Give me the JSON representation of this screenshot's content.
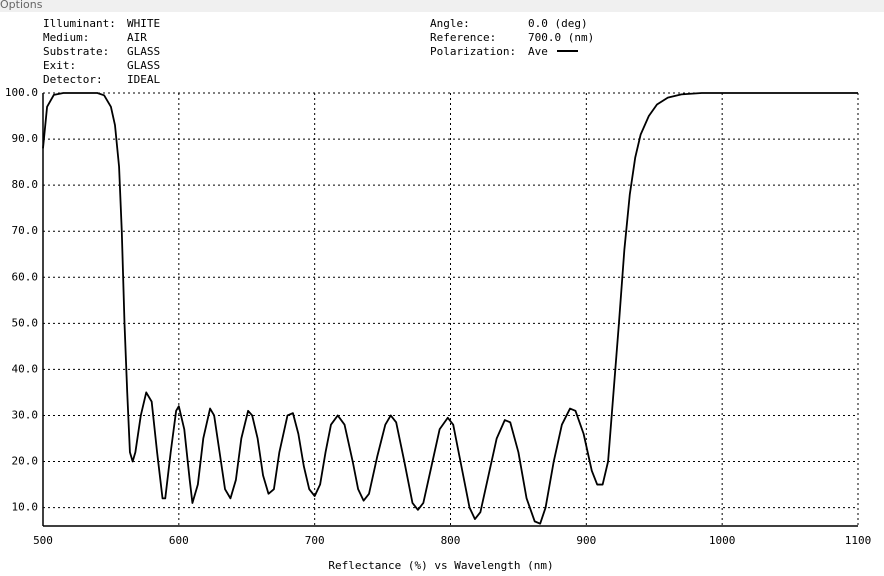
{
  "menu": [
    "Options"
  ],
  "chart_data": {
    "type": "line",
    "info_left": [
      {
        "label": "Illuminant:",
        "value": "WHITE"
      },
      {
        "label": "Medium:",
        "value": "AIR"
      },
      {
        "label": "Substrate:",
        "value": "GLASS"
      },
      {
        "label": "Exit:",
        "value": "GLASS"
      },
      {
        "label": "Detector:",
        "value": "IDEAL"
      }
    ],
    "info_right": [
      {
        "label": "Angle:",
        "value": "0.0 (deg)"
      },
      {
        "label": "Reference:",
        "value": "700.0 (nm)"
      }
    ],
    "legend_label": "Polarization:",
    "xlabel": "Reflectance (%)  vs  Wavelength (nm)",
    "xlim": [
      500,
      1100
    ],
    "ylim": [
      6,
      100
    ],
    "xticks": [
      500,
      600,
      700,
      800,
      900,
      1000,
      1100
    ],
    "yticks": [
      {
        "value": 100,
        "label": "100.0"
      },
      {
        "value": 90,
        "label": "90.0"
      },
      {
        "value": 80,
        "label": "80.0"
      },
      {
        "value": 70,
        "label": "70.0"
      },
      {
        "value": 60,
        "label": "60.0"
      },
      {
        "value": 50,
        "label": "50.0"
      },
      {
        "value": 40,
        "label": "40.0"
      },
      {
        "value": 30,
        "label": "30.0"
      },
      {
        "value": 20,
        "label": "20.0"
      },
      {
        "value": 10,
        "label": "10.0"
      }
    ],
    "grid": true,
    "x": [
      500,
      503,
      508,
      515,
      540,
      545,
      550,
      553,
      556,
      558,
      560,
      562,
      564,
      566,
      568,
      572,
      576,
      580,
      584,
      588,
      590,
      594,
      598,
      600,
      604,
      608,
      610,
      614,
      618,
      623,
      626,
      630,
      634,
      638,
      642,
      646,
      651,
      654,
      658,
      662,
      666,
      670,
      674,
      680,
      684,
      688,
      692,
      696,
      700,
      704,
      708,
      712,
      717,
      722,
      728,
      732,
      736,
      740,
      746,
      752,
      756,
      760,
      766,
      772,
      776,
      780,
      786,
      792,
      798,
      802,
      808,
      814,
      818,
      822,
      828,
      834,
      840,
      844,
      850,
      856,
      862,
      866,
      870,
      876,
      882,
      888,
      892,
      898,
      904,
      908,
      912,
      916,
      920,
      924,
      928,
      932,
      936,
      940,
      946,
      952,
      960,
      970,
      985,
      1100
    ],
    "series": [
      {
        "name": "Ave",
        "color": "#000000",
        "values": [
          88,
          97,
          99.6,
          100,
          100,
          99.5,
          97,
          93,
          84,
          70,
          50,
          35,
          22,
          20,
          22,
          30,
          35,
          33,
          22,
          12,
          12,
          22,
          31,
          32,
          27,
          16,
          11,
          15,
          25,
          31.5,
          30,
          22,
          14,
          12,
          16,
          25,
          31,
          30,
          25,
          17,
          13,
          14,
          22,
          30,
          30.5,
          26,
          19,
          14,
          12.5,
          15,
          22,
          28,
          30,
          28,
          20,
          14,
          11.5,
          13,
          21,
          28,
          30,
          28.5,
          20,
          11,
          9.5,
          11,
          19,
          27,
          29.5,
          28,
          19,
          10,
          7.5,
          9,
          17,
          25,
          29,
          28.5,
          22,
          12,
          7,
          6.5,
          10,
          20,
          28,
          31.5,
          31,
          26,
          18,
          15,
          15,
          20,
          35,
          50,
          66,
          78,
          86,
          91,
          95,
          97.5,
          99,
          99.7,
          100,
          100
        ]
      }
    ]
  }
}
